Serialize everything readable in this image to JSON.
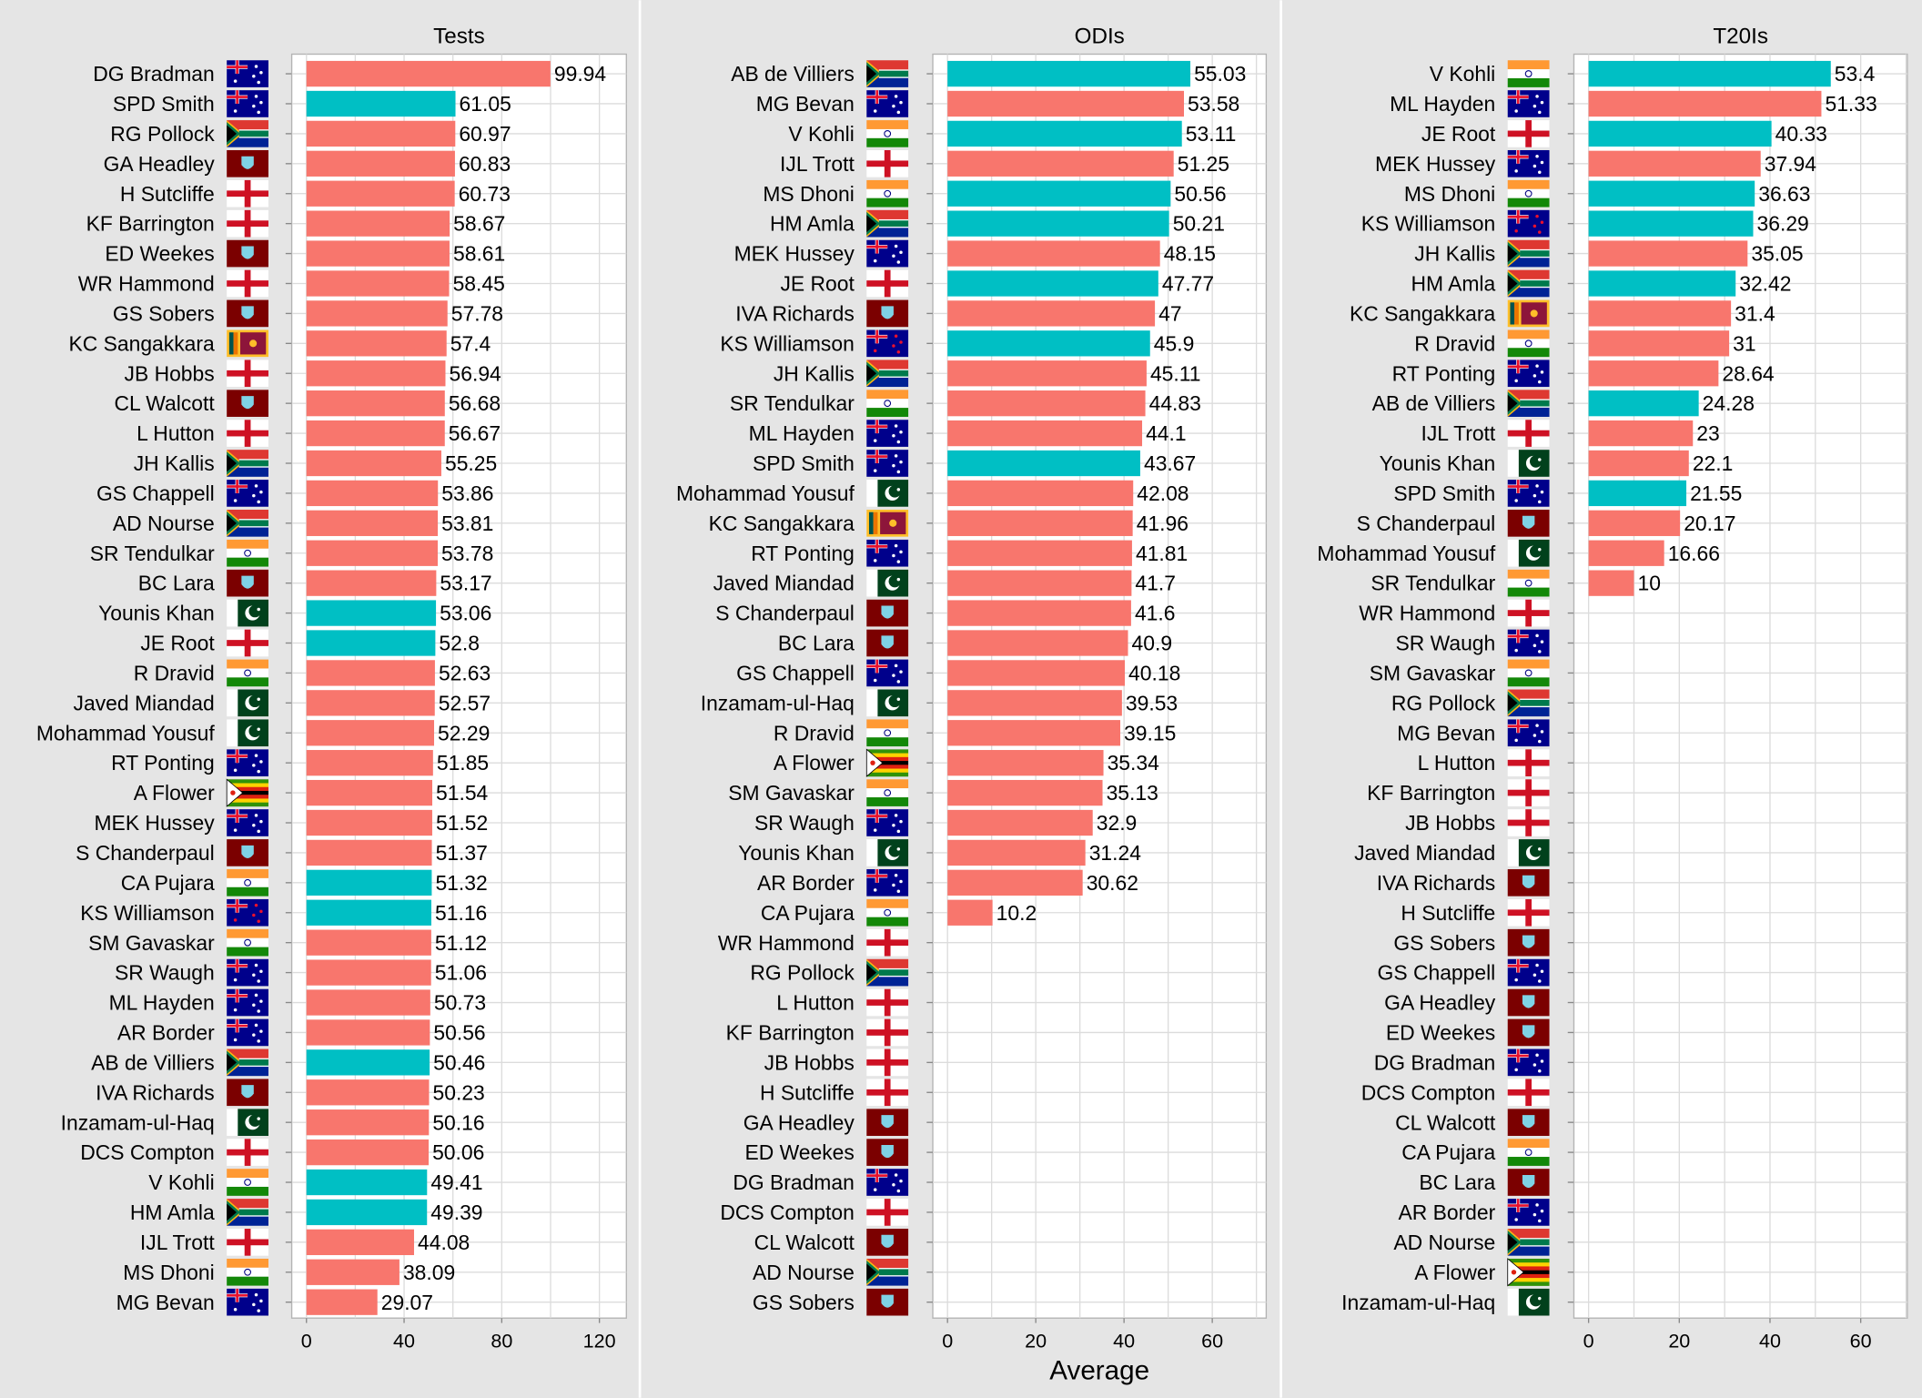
{
  "chart_data": {
    "type": "bar",
    "orientation": "horizontal",
    "xlabel": "Average",
    "legend": "none",
    "grid": true,
    "colors": {
      "retired": "#F8766D",
      "active": "#00BFC4",
      "background": "#E5E5E5",
      "panel": "#FFFFFF",
      "grid": "#D9D9D9"
    },
    "panels": [
      {
        "title": "Tests",
        "xlim": [
          0,
          125
        ],
        "ticks": [
          0,
          40,
          80,
          120
        ],
        "players": [
          {
            "name": "DG Bradman",
            "country": "AUS",
            "value": 99.94,
            "active": false
          },
          {
            "name": "SPD Smith",
            "country": "AUS",
            "value": 61.05,
            "active": true
          },
          {
            "name": "RG Pollock",
            "country": "RSA",
            "value": 60.97,
            "active": false
          },
          {
            "name": "GA Headley",
            "country": "WI",
            "value": 60.83,
            "active": false
          },
          {
            "name": "H Sutcliffe",
            "country": "ENG",
            "value": 60.73,
            "active": false
          },
          {
            "name": "KF Barrington",
            "country": "ENG",
            "value": 58.67,
            "active": false
          },
          {
            "name": "ED Weekes",
            "country": "WI",
            "value": 58.61,
            "active": false
          },
          {
            "name": "WR Hammond",
            "country": "ENG",
            "value": 58.45,
            "active": false
          },
          {
            "name": "GS Sobers",
            "country": "WI",
            "value": 57.78,
            "active": false
          },
          {
            "name": "KC Sangakkara",
            "country": "SL",
            "value": 57.4,
            "active": false
          },
          {
            "name": "JB Hobbs",
            "country": "ENG",
            "value": 56.94,
            "active": false
          },
          {
            "name": "CL Walcott",
            "country": "WI",
            "value": 56.68,
            "active": false
          },
          {
            "name": "L Hutton",
            "country": "ENG",
            "value": 56.67,
            "active": false
          },
          {
            "name": "JH Kallis",
            "country": "RSA",
            "value": 55.25,
            "active": false
          },
          {
            "name": "GS Chappell",
            "country": "AUS",
            "value": 53.86,
            "active": false
          },
          {
            "name": "AD Nourse",
            "country": "RSA",
            "value": 53.81,
            "active": false
          },
          {
            "name": "SR Tendulkar",
            "country": "IND",
            "value": 53.78,
            "active": false
          },
          {
            "name": "BC Lara",
            "country": "WI",
            "value": 53.17,
            "active": false
          },
          {
            "name": "Younis Khan",
            "country": "PAK",
            "value": 53.06,
            "active": true
          },
          {
            "name": "JE Root",
            "country": "ENG",
            "value": 52.8,
            "active": true
          },
          {
            "name": "R Dravid",
            "country": "IND",
            "value": 52.63,
            "active": false
          },
          {
            "name": "Javed Miandad",
            "country": "PAK",
            "value": 52.57,
            "active": false
          },
          {
            "name": "Mohammad Yousuf",
            "country": "PAK",
            "value": 52.29,
            "active": false
          },
          {
            "name": "RT Ponting",
            "country": "AUS",
            "value": 51.85,
            "active": false
          },
          {
            "name": "A Flower",
            "country": "ZIM",
            "value": 51.54,
            "active": false
          },
          {
            "name": "MEK Hussey",
            "country": "AUS",
            "value": 51.52,
            "active": false
          },
          {
            "name": "S Chanderpaul",
            "country": "WI",
            "value": 51.37,
            "active": false
          },
          {
            "name": "CA Pujara",
            "country": "IND",
            "value": 51.32,
            "active": true
          },
          {
            "name": "KS Williamson",
            "country": "NZ",
            "value": 51.16,
            "active": true
          },
          {
            "name": "SM Gavaskar",
            "country": "IND",
            "value": 51.12,
            "active": false
          },
          {
            "name": "SR Waugh",
            "country": "AUS",
            "value": 51.06,
            "active": false
          },
          {
            "name": "ML Hayden",
            "country": "AUS",
            "value": 50.73,
            "active": false
          },
          {
            "name": "AR Border",
            "country": "AUS",
            "value": 50.56,
            "active": false
          },
          {
            "name": "AB de Villiers",
            "country": "RSA",
            "value": 50.46,
            "active": true
          },
          {
            "name": "IVA Richards",
            "country": "WI",
            "value": 50.23,
            "active": false
          },
          {
            "name": "Inzamam-ul-Haq",
            "country": "PAK",
            "value": 50.16,
            "active": false
          },
          {
            "name": "DCS Compton",
            "country": "ENG",
            "value": 50.06,
            "active": false
          },
          {
            "name": "V Kohli",
            "country": "IND",
            "value": 49.41,
            "active": true
          },
          {
            "name": "HM Amla",
            "country": "RSA",
            "value": 49.39,
            "active": true
          },
          {
            "name": "IJL Trott",
            "country": "ENG",
            "value": 44.08,
            "active": false
          },
          {
            "name": "MS Dhoni",
            "country": "IND",
            "value": 38.09,
            "active": false
          },
          {
            "name": "MG Bevan",
            "country": "AUS",
            "value": 29.07,
            "active": false
          }
        ]
      },
      {
        "title": "ODIs",
        "xlim": [
          0,
          70
        ],
        "ticks": [
          0,
          20,
          40,
          60
        ],
        "players": [
          {
            "name": "AB de Villiers",
            "country": "RSA",
            "value": 55.03,
            "active": true
          },
          {
            "name": "MG Bevan",
            "country": "AUS",
            "value": 53.58,
            "active": false
          },
          {
            "name": "V Kohli",
            "country": "IND",
            "value": 53.11,
            "active": true
          },
          {
            "name": "IJL Trott",
            "country": "ENG",
            "value": 51.25,
            "active": false
          },
          {
            "name": "MS Dhoni",
            "country": "IND",
            "value": 50.56,
            "active": true
          },
          {
            "name": "HM Amla",
            "country": "RSA",
            "value": 50.21,
            "active": true
          },
          {
            "name": "MEK Hussey",
            "country": "AUS",
            "value": 48.15,
            "active": false
          },
          {
            "name": "JE Root",
            "country": "ENG",
            "value": 47.77,
            "active": true
          },
          {
            "name": "IVA Richards",
            "country": "WI",
            "value": 47,
            "active": false
          },
          {
            "name": "KS Williamson",
            "country": "NZ",
            "value": 45.9,
            "active": true
          },
          {
            "name": "JH Kallis",
            "country": "RSA",
            "value": 45.11,
            "active": false
          },
          {
            "name": "SR Tendulkar",
            "country": "IND",
            "value": 44.83,
            "active": false
          },
          {
            "name": "ML Hayden",
            "country": "AUS",
            "value": 44.1,
            "active": false
          },
          {
            "name": "SPD Smith",
            "country": "AUS",
            "value": 43.67,
            "active": true
          },
          {
            "name": "Mohammad Yousuf",
            "country": "PAK",
            "value": 42.08,
            "active": false
          },
          {
            "name": "KC Sangakkara",
            "country": "SL",
            "value": 41.96,
            "active": false
          },
          {
            "name": "RT Ponting",
            "country": "AUS",
            "value": 41.81,
            "active": false
          },
          {
            "name": "Javed Miandad",
            "country": "PAK",
            "value": 41.7,
            "active": false
          },
          {
            "name": "S Chanderpaul",
            "country": "WI",
            "value": 41.6,
            "active": false
          },
          {
            "name": "BC Lara",
            "country": "WI",
            "value": 40.9,
            "active": false
          },
          {
            "name": "GS Chappell",
            "country": "AUS",
            "value": 40.18,
            "active": false
          },
          {
            "name": "Inzamam-ul-Haq",
            "country": "PAK",
            "value": 39.53,
            "active": false
          },
          {
            "name": "R Dravid",
            "country": "IND",
            "value": 39.15,
            "active": false
          },
          {
            "name": "A Flower",
            "country": "ZIM",
            "value": 35.34,
            "active": false
          },
          {
            "name": "SM Gavaskar",
            "country": "IND",
            "value": 35.13,
            "active": false
          },
          {
            "name": "SR Waugh",
            "country": "AUS",
            "value": 32.9,
            "active": false
          },
          {
            "name": "Younis Khan",
            "country": "PAK",
            "value": 31.24,
            "active": false
          },
          {
            "name": "AR Border",
            "country": "AUS",
            "value": 30.62,
            "active": false
          },
          {
            "name": "CA Pujara",
            "country": "IND",
            "value": 10.2,
            "active": false
          },
          {
            "name": "WR Hammond",
            "country": "ENG",
            "value": null,
            "active": false
          },
          {
            "name": "RG Pollock",
            "country": "RSA",
            "value": null,
            "active": false
          },
          {
            "name": "L Hutton",
            "country": "ENG",
            "value": null,
            "active": false
          },
          {
            "name": "KF Barrington",
            "country": "ENG",
            "value": null,
            "active": false
          },
          {
            "name": "JB Hobbs",
            "country": "ENG",
            "value": null,
            "active": false
          },
          {
            "name": "H Sutcliffe",
            "country": "ENG",
            "value": null,
            "active": false
          },
          {
            "name": "GA Headley",
            "country": "WI",
            "value": null,
            "active": false
          },
          {
            "name": "ED Weekes",
            "country": "WI",
            "value": null,
            "active": false
          },
          {
            "name": "DG Bradman",
            "country": "AUS",
            "value": null,
            "active": false
          },
          {
            "name": "DCS Compton",
            "country": "ENG",
            "value": null,
            "active": false
          },
          {
            "name": "CL Walcott",
            "country": "WI",
            "value": null,
            "active": false
          },
          {
            "name": "AD Nourse",
            "country": "RSA",
            "value": null,
            "active": false
          },
          {
            "name": "GS Sobers",
            "country": "WI",
            "value": null,
            "active": false
          }
        ]
      },
      {
        "title": "T20Is",
        "xlim": [
          0,
          70
        ],
        "ticks": [
          0,
          20,
          40,
          60
        ],
        "players": [
          {
            "name": "V Kohli",
            "country": "IND",
            "value": 53.4,
            "active": true
          },
          {
            "name": "ML Hayden",
            "country": "AUS",
            "value": 51.33,
            "active": false
          },
          {
            "name": "JE Root",
            "country": "ENG",
            "value": 40.33,
            "active": true
          },
          {
            "name": "MEK Hussey",
            "country": "AUS",
            "value": 37.94,
            "active": false
          },
          {
            "name": "MS Dhoni",
            "country": "IND",
            "value": 36.63,
            "active": true
          },
          {
            "name": "KS Williamson",
            "country": "NZ",
            "value": 36.29,
            "active": true
          },
          {
            "name": "JH Kallis",
            "country": "RSA",
            "value": 35.05,
            "active": false
          },
          {
            "name": "HM Amla",
            "country": "RSA",
            "value": 32.42,
            "active": true
          },
          {
            "name": "KC Sangakkara",
            "country": "SL",
            "value": 31.4,
            "active": false
          },
          {
            "name": "R Dravid",
            "country": "IND",
            "value": 31,
            "active": false
          },
          {
            "name": "RT Ponting",
            "country": "AUS",
            "value": 28.64,
            "active": false
          },
          {
            "name": "AB de Villiers",
            "country": "RSA",
            "value": 24.28,
            "active": true
          },
          {
            "name": "IJL Trott",
            "country": "ENG",
            "value": 23,
            "active": false
          },
          {
            "name": "Younis Khan",
            "country": "PAK",
            "value": 22.1,
            "active": false
          },
          {
            "name": "SPD Smith",
            "country": "AUS",
            "value": 21.55,
            "active": true
          },
          {
            "name": "S Chanderpaul",
            "country": "WI",
            "value": 20.17,
            "active": false
          },
          {
            "name": "Mohammad Yousuf",
            "country": "PAK",
            "value": 16.66,
            "active": false
          },
          {
            "name": "SR Tendulkar",
            "country": "IND",
            "value": 10,
            "active": false
          },
          {
            "name": "WR Hammond",
            "country": "ENG",
            "value": null,
            "active": false
          },
          {
            "name": "SR Waugh",
            "country": "AUS",
            "value": null,
            "active": false
          },
          {
            "name": "SM Gavaskar",
            "country": "IND",
            "value": null,
            "active": false
          },
          {
            "name": "RG Pollock",
            "country": "RSA",
            "value": null,
            "active": false
          },
          {
            "name": "MG Bevan",
            "country": "AUS",
            "value": null,
            "active": false
          },
          {
            "name": "L Hutton",
            "country": "ENG",
            "value": null,
            "active": false
          },
          {
            "name": "KF Barrington",
            "country": "ENG",
            "value": null,
            "active": false
          },
          {
            "name": "JB Hobbs",
            "country": "ENG",
            "value": null,
            "active": false
          },
          {
            "name": "Javed Miandad",
            "country": "PAK",
            "value": null,
            "active": false
          },
          {
            "name": "IVA Richards",
            "country": "WI",
            "value": null,
            "active": false
          },
          {
            "name": "H Sutcliffe",
            "country": "ENG",
            "value": null,
            "active": false
          },
          {
            "name": "GS Sobers",
            "country": "WI",
            "value": null,
            "active": false
          },
          {
            "name": "GS Chappell",
            "country": "AUS",
            "value": null,
            "active": false
          },
          {
            "name": "GA Headley",
            "country": "WI",
            "value": null,
            "active": false
          },
          {
            "name": "ED Weekes",
            "country": "WI",
            "value": null,
            "active": false
          },
          {
            "name": "DG Bradman",
            "country": "AUS",
            "value": null,
            "active": false
          },
          {
            "name": "DCS Compton",
            "country": "ENG",
            "value": null,
            "active": false
          },
          {
            "name": "CL Walcott",
            "country": "WI",
            "value": null,
            "active": false
          },
          {
            "name": "CA Pujara",
            "country": "IND",
            "value": null,
            "active": false
          },
          {
            "name": "BC Lara",
            "country": "WI",
            "value": null,
            "active": false
          },
          {
            "name": "AR Border",
            "country": "AUS",
            "value": null,
            "active": false
          },
          {
            "name": "AD Nourse",
            "country": "RSA",
            "value": null,
            "active": false
          },
          {
            "name": "A Flower",
            "country": "ZIM",
            "value": null,
            "active": false
          },
          {
            "name": "Inzamam-ul-Haq",
            "country": "PAK",
            "value": null,
            "active": false
          }
        ]
      }
    ]
  }
}
